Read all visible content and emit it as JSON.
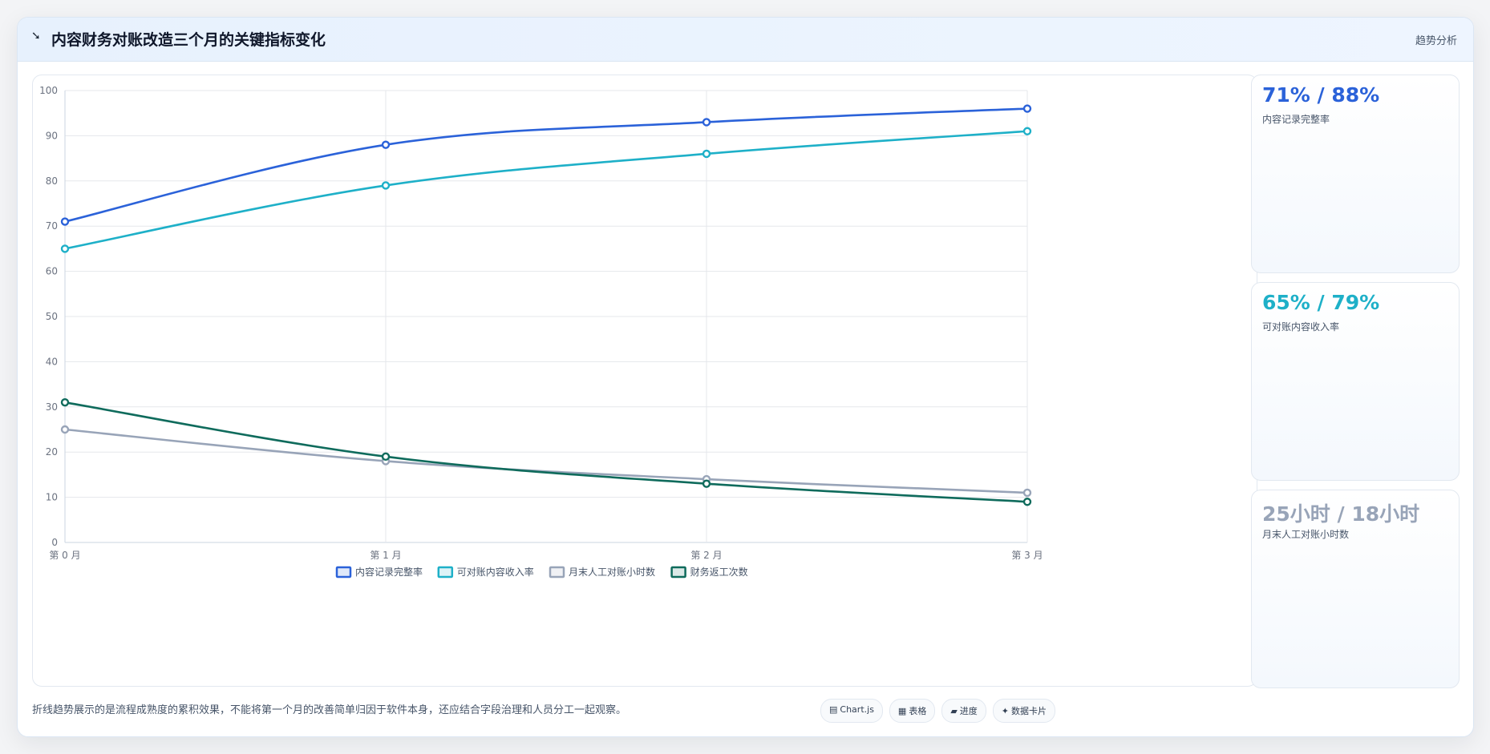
{
  "header": {
    "icon": "chart-trend-icon",
    "title": "内容财务对账改造三个月的关键指标变化",
    "right_label": "趋势分析"
  },
  "chart_data": {
    "type": "line",
    "categories": [
      "第 0 月",
      "第 1 月",
      "第 2 月",
      "第 3 月"
    ],
    "ylim": [
      0,
      100
    ],
    "yticks": [
      0,
      10,
      20,
      30,
      40,
      50,
      60,
      70,
      80,
      90,
      100
    ],
    "grid": true,
    "legend_position": "bottom",
    "series": [
      {
        "name": "内容记录完整率",
        "values": [
          71,
          88,
          93,
          96
        ],
        "color": "#2b62d9"
      },
      {
        "name": "可对账内容收入率",
        "values": [
          65,
          79,
          86,
          91
        ],
        "color": "#1eb0c8"
      },
      {
        "name": "月末人工对账小时数",
        "values": [
          25,
          18,
          14,
          11
        ],
        "color": "#98a4b8"
      },
      {
        "name": "财务返工次数",
        "values": [
          31,
          19,
          13,
          9
        ],
        "color": "#0f6b5c"
      }
    ]
  },
  "stats": [
    {
      "value": "71% / 88%",
      "label": "内容记录完整率",
      "color": "#2b62d9"
    },
    {
      "value": "65% / 79%",
      "label": "可对账内容收入率",
      "color": "#1eb0c8"
    },
    {
      "value": "25小时 / 18小时",
      "label": "月末人工对账小时数",
      "color": "#98a4b8"
    }
  ],
  "footer": {
    "note": "折线趋势展示的是流程成熟度的累积效果，不能将第一个月的改善简单归因于软件本身，还应结合字段治理和人员分工一起观察。",
    "chips": [
      {
        "icon": "▤",
        "label": "Chart.js"
      },
      {
        "icon": "▦",
        "label": "表格"
      },
      {
        "icon": "▰",
        "label": "进度"
      },
      {
        "icon": "✦",
        "label": "数据卡片"
      }
    ]
  }
}
